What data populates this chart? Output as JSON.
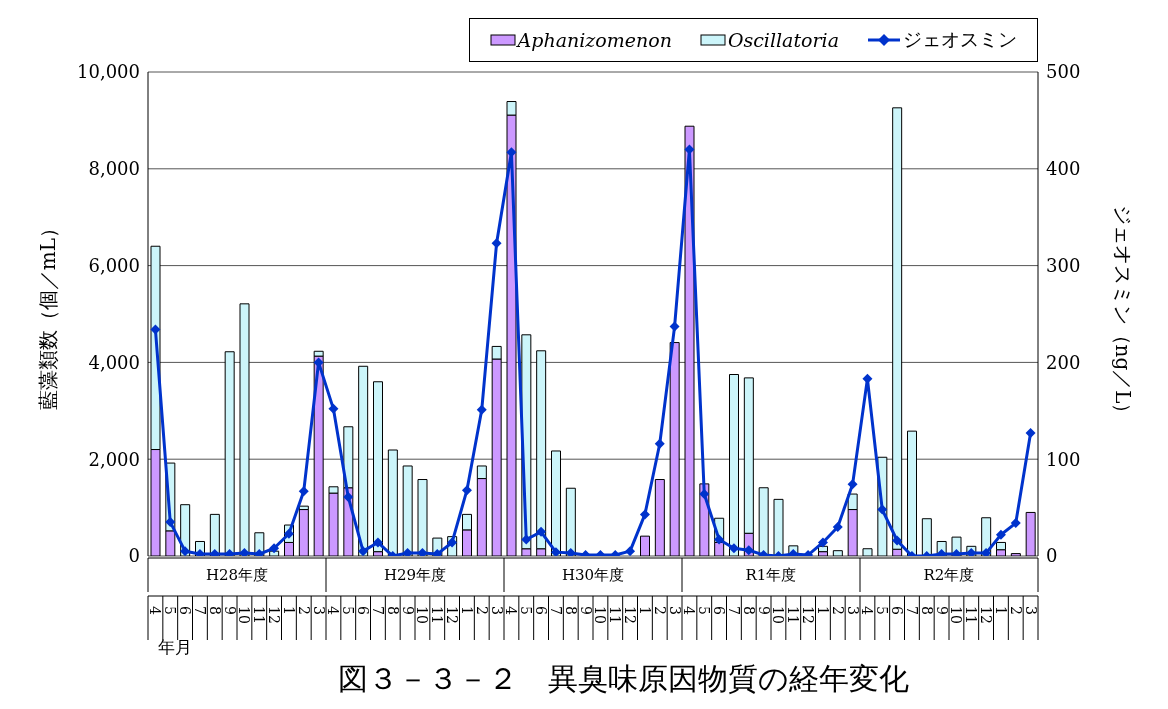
{
  "chart_data": {
    "type": "bar",
    "title": "図３－３－２　異臭味原因物質の経年変化",
    "xlabel": "年月",
    "ylabel": "藍藻類数（個／mL）",
    "y2label": "ジェオスミン（ng／L）",
    "categories": [
      "4",
      "5",
      "6",
      "7",
      "8",
      "9",
      "10",
      "11",
      "12",
      "1",
      "2",
      "3",
      "4",
      "5",
      "6",
      "7",
      "8",
      "9",
      "10",
      "11",
      "12",
      "1",
      "2",
      "3",
      "4",
      "5",
      "6",
      "7",
      "8",
      "9",
      "10",
      "11",
      "12",
      "1",
      "2",
      "3",
      "4",
      "5",
      "6",
      "7",
      "8",
      "9",
      "10",
      "11",
      "12",
      "1",
      "2",
      "3",
      "4",
      "5",
      "6",
      "7",
      "8",
      "9",
      "10",
      "11",
      "12",
      "1",
      "2",
      "3"
    ],
    "annotations": [
      "H28年度",
      "H29年度",
      "H30年度",
      "R1年度",
      "R2年度"
    ],
    "stacked": true,
    "series": [
      {
        "name": "Aphanizomenon",
        "color": "#cc99ff",
        "values": [
          2200,
          520,
          0,
          0,
          0,
          0,
          0,
          0,
          0,
          280,
          960,
          4130,
          1300,
          1410,
          0,
          90,
          0,
          0,
          0,
          0,
          0,
          540,
          1600,
          4070,
          9110,
          150,
          150,
          0,
          0,
          0,
          0,
          0,
          0,
          410,
          1580,
          4410,
          8880,
          1490,
          280,
          0,
          470,
          0,
          0,
          0,
          0,
          90,
          0,
          960,
          0,
          0,
          140,
          0,
          0,
          0,
          0,
          0,
          0,
          130,
          50,
          900
        ]
      },
      {
        "name": "Oscillatoria",
        "color": "#ccf5fa",
        "values": [
          4200,
          1400,
          1060,
          300,
          860,
          4220,
          5210,
          480,
          100,
          360,
          70,
          100,
          130,
          1260,
          3920,
          3510,
          2190,
          1860,
          1580,
          370,
          400,
          320,
          260,
          260,
          280,
          4420,
          4090,
          2170,
          1400,
          0,
          0,
          0,
          0,
          0,
          0,
          0,
          0,
          0,
          500,
          3750,
          3210,
          1410,
          1170,
          210,
          0,
          110,
          110,
          320,
          150,
          2040,
          9120,
          2580,
          770,
          300,
          390,
          200,
          790,
          150,
          0,
          0
        ]
      },
      {
        "name": "ジェオスミン",
        "type": "line",
        "axis": "y2",
        "color": "#0033cc",
        "values": [
          234,
          35,
          5,
          2,
          2,
          2,
          3,
          2,
          8,
          23,
          67,
          200,
          152,
          61,
          5,
          14,
          0,
          3,
          3,
          2,
          14,
          68,
          151,
          323,
          417,
          17,
          25,
          4,
          3,
          1,
          1,
          1,
          5,
          43,
          116,
          237,
          420,
          64,
          17,
          8,
          6,
          1,
          0,
          2,
          1,
          14,
          30,
          74,
          183,
          48,
          16,
          0,
          0,
          2,
          2,
          3,
          3,
          22,
          34,
          127
        ]
      }
    ],
    "ylim": [
      0,
      10000
    ],
    "yticks": [
      {
        "value": 0,
        "label": "0"
      },
      {
        "value": 2000,
        "label": "2,000"
      },
      {
        "value": 4000,
        "label": "4,000"
      },
      {
        "value": 6000,
        "label": "6,000"
      },
      {
        "value": 8000,
        "label": "8,000"
      },
      {
        "value": 10000,
        "label": "10,000"
      }
    ],
    "y2lim": [
      0,
      500
    ],
    "y2ticks": [
      0,
      100,
      200,
      300,
      400,
      500
    ],
    "grid": "y",
    "legend": "top right",
    "marker": "diamond",
    "line_style": "solid"
  }
}
